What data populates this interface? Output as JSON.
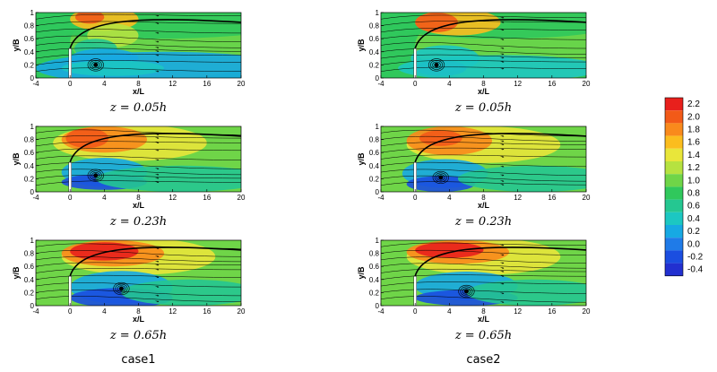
{
  "panels": [
    {
      "id": "case1-z005",
      "caption": "z = 0.05h"
    },
    {
      "id": "case2-z005",
      "caption": "z = 0.05h"
    },
    {
      "id": "case1-z023",
      "caption": "z = 0.23h"
    },
    {
      "id": "case2-z023",
      "caption": "z = 0.23h"
    },
    {
      "id": "case1-z065",
      "caption": "z = 0.65h"
    },
    {
      "id": "case2-z065",
      "caption": "z = 0.65h"
    }
  ],
  "axes": {
    "xlabel": "x/L",
    "ylabel": "y/B",
    "xticks": [
      "-4",
      "0",
      "4",
      "8",
      "12",
      "16",
      "20"
    ],
    "yticks": [
      "0",
      "0.2",
      "0.4",
      "0.6",
      "0.8",
      "1"
    ],
    "xlim": [
      -4,
      20
    ],
    "ylim": [
      0,
      1
    ]
  },
  "case_labels": [
    "case1",
    "case2"
  ],
  "colorbar": {
    "levels": [
      "2.2",
      "2.0",
      "1.8",
      "1.6",
      "1.4",
      "1.2",
      "1.0",
      "0.8",
      "0.6",
      "0.4",
      "0.2",
      "0.0",
      "-0.2",
      "-0.4"
    ],
    "colors": [
      "#e8201c",
      "#f25a18",
      "#f98a1c",
      "#fbbd1e",
      "#e9e63a",
      "#b6e240",
      "#6fd548",
      "#30c85c",
      "#25c791",
      "#1cc7c2",
      "#17a9e3",
      "#1f7be8",
      "#1b4ee0",
      "#2230d0"
    ]
  },
  "colors": {
    "wall": "#ffffff",
    "streamline": "#000000"
  }
}
